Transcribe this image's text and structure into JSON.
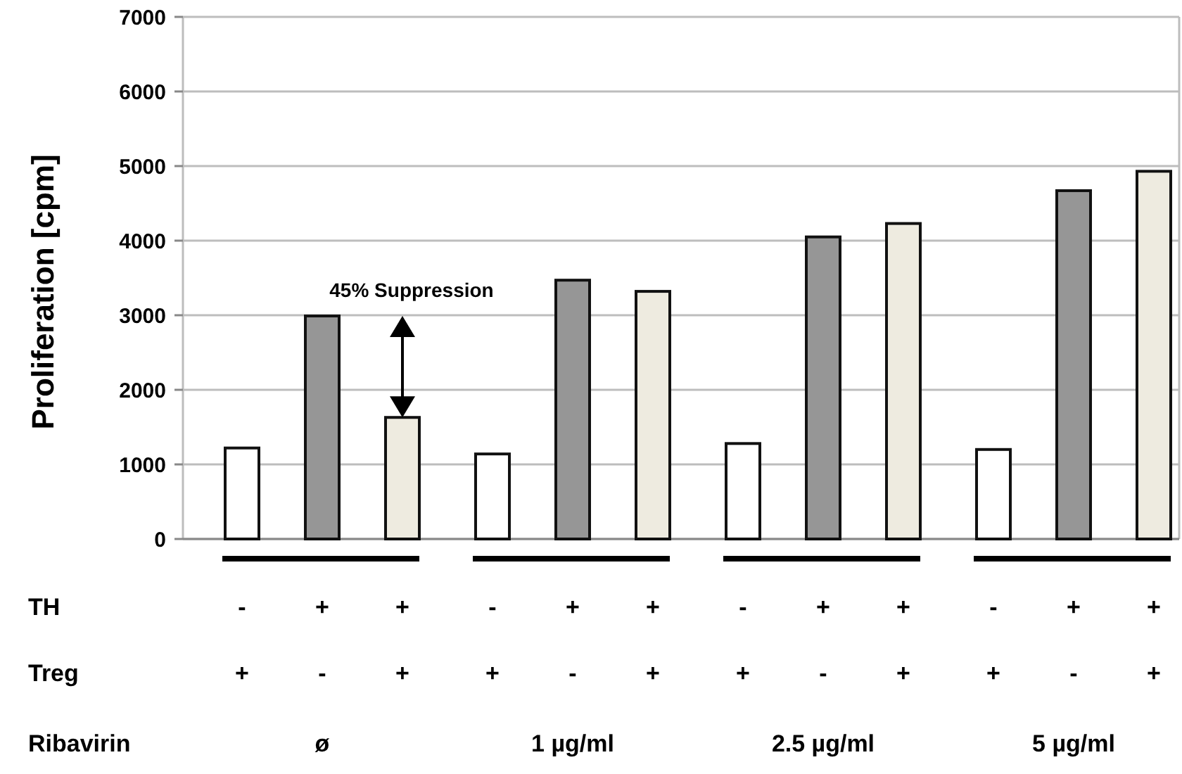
{
  "chart_data": {
    "type": "bar",
    "ylabel": "Proliferation [cpm]",
    "categories": [
      "-\n+",
      "+\n-",
      "+\n+",
      "-\n+",
      "+\n-",
      "+\n+",
      "-\n+",
      "+\n-",
      "+\n+",
      "-\n+",
      "+\n-",
      "+\n+"
    ],
    "values": [
      1220,
      2990,
      1630,
      1140,
      3470,
      3320,
      1280,
      4050,
      4230,
      1200,
      4670,
      4930
    ],
    "colors": [
      "#ffffff",
      "#969696",
      "#eeebe0",
      "#ffffff",
      "#969696",
      "#eeebe0",
      "#ffffff",
      "#969696",
      "#eeebe0",
      "#ffffff",
      "#969696",
      "#eeebe0"
    ],
    "ylim": [
      0,
      7000
    ],
    "yticks": [
      0,
      1000,
      2000,
      3000,
      4000,
      5000,
      6000,
      7000
    ],
    "grid": "y",
    "annotations": [
      "45% Suppression",
      "TH",
      "Treg",
      "Ribavirin",
      "ø",
      "1 µg/ml",
      "2.5 µg/ml",
      "5 µg/ml"
    ]
  }
}
